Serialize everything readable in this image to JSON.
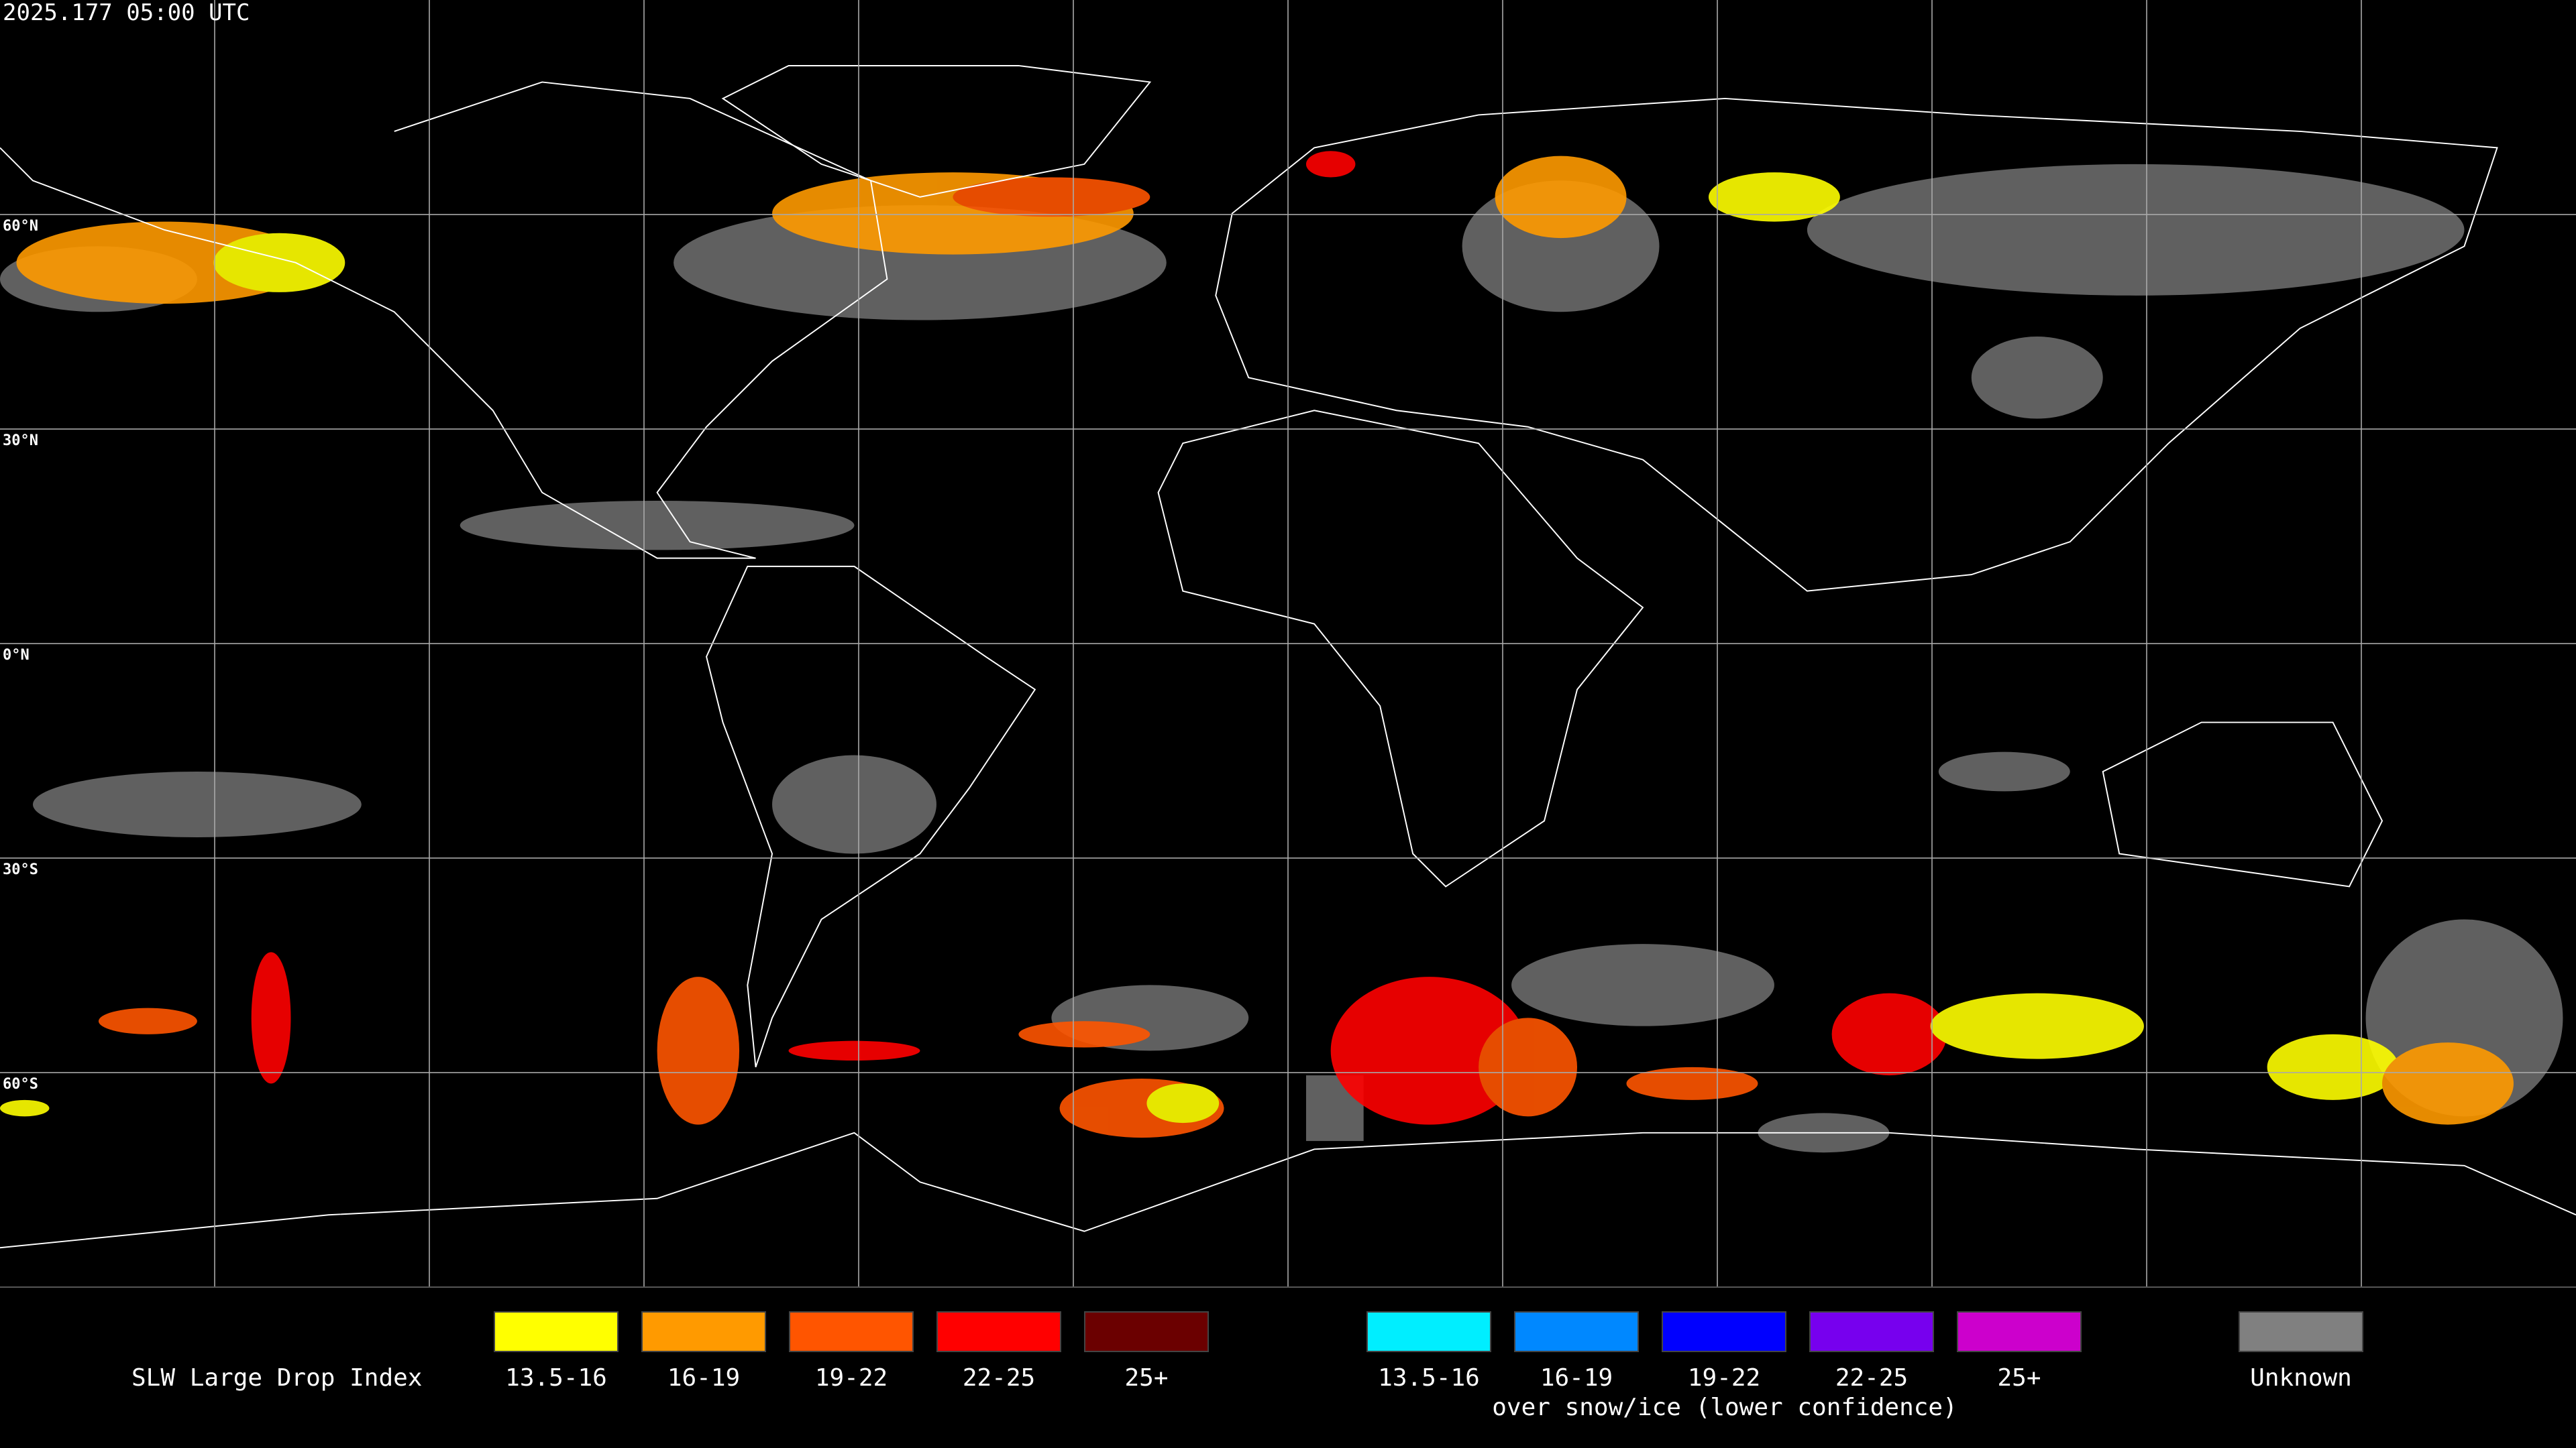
{
  "timestamp": "2025.177 05:00 UTC",
  "latitude_labels": [
    "60°N",
    "30°N",
    "0°N",
    "30°S",
    "60°S"
  ],
  "legend": {
    "title": "SLW Large Drop Index",
    "items": [
      {
        "label": "13.5-16",
        "color": "#ffff00"
      },
      {
        "label": "16-19",
        "color": "#ff9a00"
      },
      {
        "label": "19-22",
        "color": "#ff5500"
      },
      {
        "label": "22-25",
        "color": "#ff0000"
      },
      {
        "label": "25+",
        "color": "#6b0000"
      },
      {
        "label": "13.5-16",
        "color": "#00eeff"
      },
      {
        "label": "16-19",
        "color": "#0088ff"
      },
      {
        "label": "19-22",
        "color": "#0000ff"
      },
      {
        "label": "22-25",
        "color": "#7700ee"
      },
      {
        "label": "25+",
        "color": "#cc00cc"
      }
    ],
    "snow_ice_note": "over snow/ice (lower confidence)",
    "unknown": {
      "label": "Unknown",
      "color": "#808080"
    }
  }
}
